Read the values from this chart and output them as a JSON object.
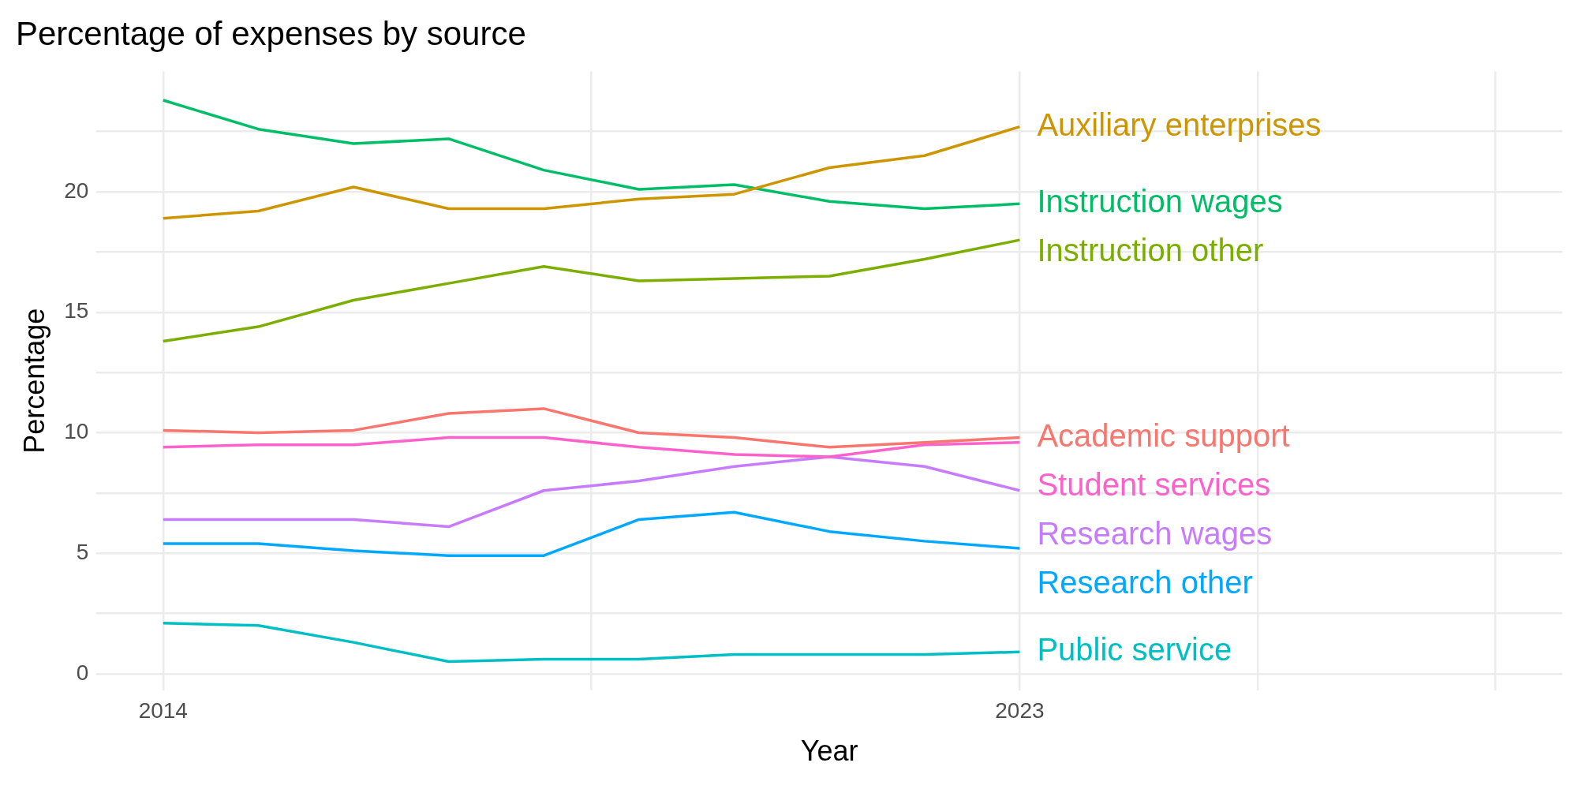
{
  "chart_data": {
    "type": "line",
    "title": "Percentage of expenses by source",
    "xlabel": "Year",
    "ylabel": "Percentage",
    "x": [
      2014,
      2015,
      2016,
      2017,
      2018,
      2019,
      2020,
      2021,
      2022,
      2023
    ],
    "xlim": [
      2013.3,
      2028.7
    ],
    "xticks": [
      2014,
      {
        "value": 2018.5,
        "label": null
      },
      2023,
      {
        "value": 2025.5,
        "label": null
      },
      {
        "value": 2028,
        "label": null
      }
    ],
    "ylim": [
      -0.7,
      25
    ],
    "yticks": [
      0,
      {
        "value": 2.5,
        "label": null
      },
      5,
      {
        "value": 7.5,
        "label": null
      },
      10,
      {
        "value": 12.5,
        "label": null
      },
      15,
      {
        "value": 17.5,
        "label": null
      },
      20,
      {
        "value": 22.5,
        "label": null
      }
    ],
    "grid": true,
    "legend": false,
    "marker": "none",
    "line_style": "solid",
    "series": [
      {
        "name": "Auxiliary enterprises",
        "color": "#cd9600",
        "values": [
          18.9,
          19.2,
          20.2,
          19.3,
          19.3,
          19.7,
          19.9,
          21.0,
          21.5,
          22.7
        ]
      },
      {
        "name": "Instruction wages",
        "color": "#00be67",
        "values": [
          23.8,
          22.6,
          22.0,
          22.2,
          20.9,
          20.1,
          20.3,
          19.6,
          19.3,
          19.5
        ]
      },
      {
        "name": "Instruction other",
        "color": "#7cae00",
        "values": [
          13.8,
          14.4,
          15.5,
          16.2,
          16.9,
          16.3,
          16.4,
          16.5,
          17.2,
          18.0
        ]
      },
      {
        "name": "Academic support",
        "color": "#f8766d",
        "values": [
          10.1,
          10.0,
          10.1,
          10.8,
          11.0,
          10.0,
          9.8,
          9.4,
          9.6,
          9.8
        ]
      },
      {
        "name": "Student services",
        "color": "#ff61cc",
        "values": [
          9.4,
          9.5,
          9.5,
          9.8,
          9.8,
          9.4,
          9.1,
          9.0,
          9.5,
          9.6
        ]
      },
      {
        "name": "Research wages",
        "color": "#c77cff",
        "values": [
          6.4,
          6.4,
          6.4,
          6.1,
          7.6,
          8.0,
          8.6,
          9.0,
          8.6,
          7.6
        ]
      },
      {
        "name": "Research other",
        "color": "#00a9ff",
        "values": [
          5.4,
          5.4,
          5.1,
          4.9,
          4.9,
          6.4,
          6.7,
          5.9,
          5.5,
          5.2
        ]
      },
      {
        "name": "Public service",
        "color": "#00bfc4",
        "values": [
          2.1,
          2.0,
          1.3,
          0.5,
          0.6,
          0.6,
          0.8,
          0.8,
          0.8,
          0.9
        ]
      }
    ]
  }
}
